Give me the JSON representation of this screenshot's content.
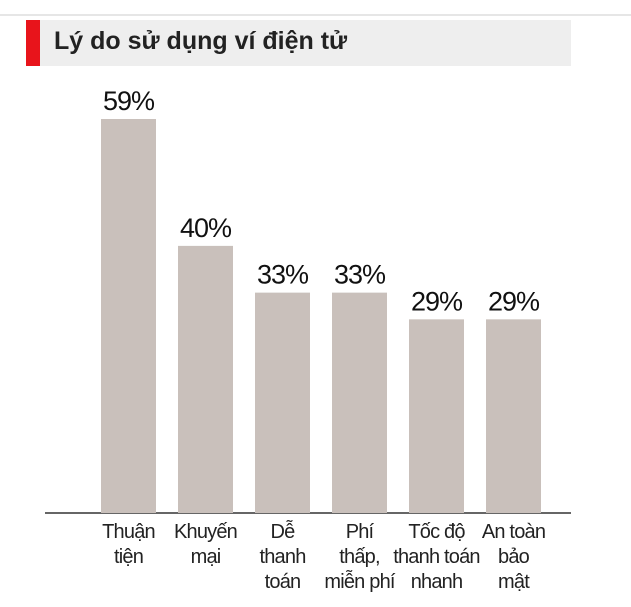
{
  "chart_data": {
    "type": "bar",
    "title": "Lý do sử dụng ví điện tử",
    "categories": [
      "Thuận\ntiện",
      "Khuyến\nmại",
      "Dễ\nthanh\ntoán",
      "Phí\nthấp,\nmiễn phí",
      "Tốc độ\nthanh toán\nnhanh",
      "An toàn\nbảo\nmật"
    ],
    "values": [
      59,
      40,
      33,
      33,
      29,
      29
    ],
    "value_labels": [
      "59%",
      "40%",
      "33%",
      "33%",
      "29%",
      "29%"
    ],
    "color": "#c9c0bb",
    "ylim": [
      0,
      59
    ]
  }
}
